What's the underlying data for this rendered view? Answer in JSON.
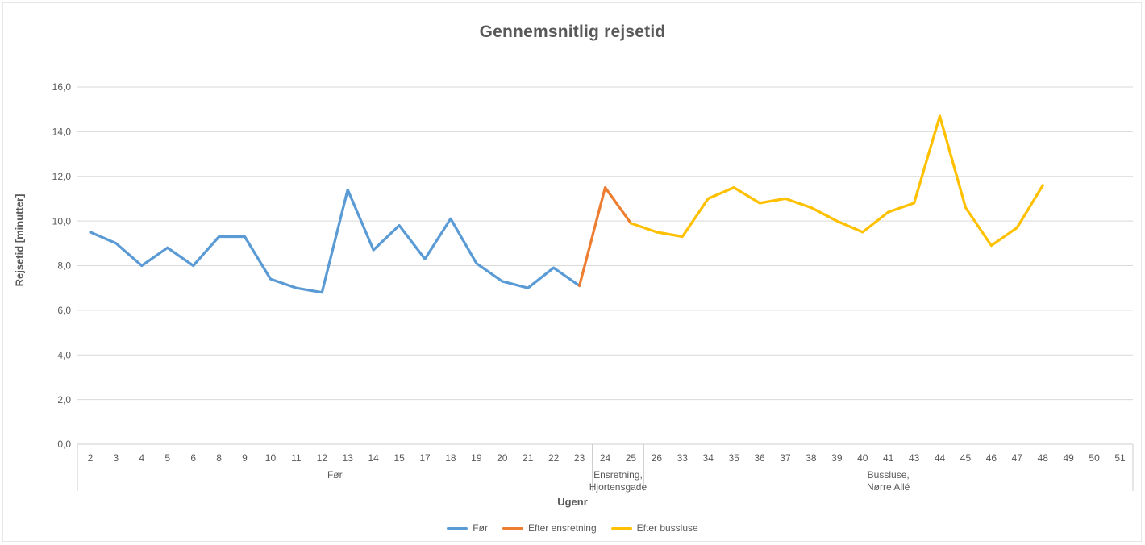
{
  "chart_data": {
    "type": "line",
    "title": "Gennemsnitlig rejsetid",
    "xlabel": "Ugenr",
    "ylabel": "Rejsetid [minutter]",
    "ylim": [
      0,
      16
    ],
    "ytick_step": 2,
    "ytick_labels": [
      "0,0",
      "2,0",
      "4,0",
      "6,0",
      "8,0",
      "10,0",
      "12,0",
      "14,0",
      "16,0"
    ],
    "grid": true,
    "legend_position": "bottom",
    "categories": [
      "2",
      "3",
      "4",
      "5",
      "6",
      "8",
      "9",
      "10",
      "11",
      "12",
      "13",
      "14",
      "15",
      "17",
      "18",
      "19",
      "20",
      "21",
      "22",
      "23",
      "24",
      "25",
      "26",
      "33",
      "34",
      "35",
      "36",
      "37",
      "38",
      "39",
      "40",
      "41",
      "43",
      "44",
      "45",
      "46",
      "47",
      "48",
      "49",
      "50",
      "51"
    ],
    "category_groups": [
      {
        "label_lines": [
          "Før"
        ],
        "start_index": 0,
        "end_index": 19
      },
      {
        "label_lines": [
          "Ensretning,",
          "Hjortensgade"
        ],
        "start_index": 20,
        "end_index": 21
      },
      {
        "label_lines": [
          "Bussluse,",
          "Nørre Allé"
        ],
        "start_index": 22,
        "end_index": 40
      }
    ],
    "series": [
      {
        "name": "Før",
        "color": "#5B9BD5",
        "start_index": 0,
        "values": [
          9.5,
          9.0,
          8.0,
          8.8,
          8.0,
          9.3,
          9.3,
          7.4,
          7.0,
          6.8,
          11.4,
          8.7,
          9.8,
          8.3,
          10.1,
          8.1,
          7.3,
          7.0,
          7.9,
          7.1
        ]
      },
      {
        "name": "Efter ensretning",
        "color": "#ED7D31",
        "start_index": 19,
        "values": [
          7.1,
          11.5,
          9.9
        ]
      },
      {
        "name": "Efter bussluse",
        "color": "#FFC000",
        "start_index": 21,
        "values": [
          9.9,
          9.5,
          9.3,
          11.0,
          11.5,
          10.8,
          11.0,
          10.6,
          10.0,
          9.5,
          10.4,
          10.8,
          14.7,
          10.6,
          8.9,
          9.7,
          11.6
        ]
      }
    ]
  }
}
